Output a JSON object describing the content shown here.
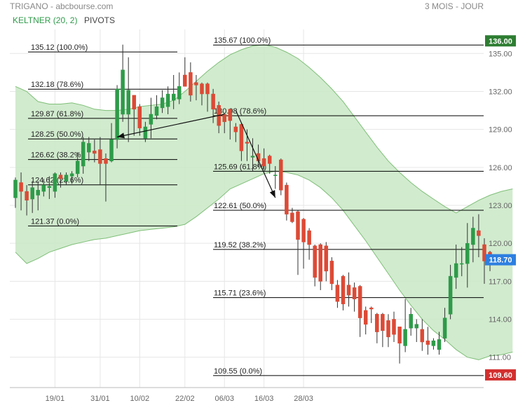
{
  "header": {
    "title": "TRIGANO - abcbourse.com",
    "period": "3 MOIS - JOUR",
    "indicator_keltner": "KELTNER (20, 2)",
    "indicator_pivots": "PIVOTS"
  },
  "colors": {
    "up": "#2e9b49",
    "down": "#dc4a36",
    "band_fill": "#c9e7c6",
    "band_line": "#7fbf78",
    "fib_line": "#000000",
    "grid": "#e6e6e6",
    "price_high_badge": "#2e7d32",
    "price_current_badge": "#2d7fe0",
    "price_low_badge": "#d32f2f",
    "keltner_label": "#2e9b49"
  },
  "chart_data": {
    "type": "candlestick",
    "y_axis": {
      "ylim": [
        108.6,
        136.9
      ],
      "ticks": [
        111,
        114,
        117,
        120,
        123,
        126,
        129,
        132,
        135
      ],
      "tick_labels": [
        "111.00",
        "114.00",
        "117.00",
        "120.00",
        "123.00",
        "126.00",
        "129.00",
        "132.00",
        "135.00"
      ]
    },
    "x_axis": {
      "labels": [
        {
          "idx": 7,
          "label": "19/01"
        },
        {
          "idx": 15,
          "label": "31/01"
        },
        {
          "idx": 22,
          "label": "10/02"
        },
        {
          "idx": 30,
          "label": "22/02"
        },
        {
          "idx": 37,
          "label": "06/03"
        },
        {
          "idx": 44,
          "label": "16/03"
        },
        {
          "idx": 51,
          "label": "28/03"
        }
      ]
    },
    "candles": [
      {
        "o": 123.6,
        "h": 125.2,
        "l": 122.8,
        "c": 125.0
      },
      {
        "o": 124.8,
        "h": 125.6,
        "l": 122.6,
        "c": 124.1
      },
      {
        "o": 124.1,
        "h": 124.6,
        "l": 122.2,
        "c": 123.4
      },
      {
        "o": 123.5,
        "h": 124.9,
        "l": 122.4,
        "c": 124.4
      },
      {
        "o": 123.8,
        "h": 124.9,
        "l": 122.6,
        "c": 124.2
      },
      {
        "o": 124.1,
        "h": 125.1,
        "l": 123.7,
        "c": 124.6
      },
      {
        "o": 124.4,
        "h": 125.3,
        "l": 123.5,
        "c": 124.5
      },
      {
        "o": 124.1,
        "h": 125.6,
        "l": 123.6,
        "c": 125.5
      },
      {
        "o": 125.4,
        "h": 125.6,
        "l": 124.4,
        "c": 125.1
      },
      {
        "o": 124.9,
        "h": 125.6,
        "l": 124.6,
        "c": 125.4
      },
      {
        "o": 125.3,
        "h": 125.7,
        "l": 124.7,
        "c": 125.5
      },
      {
        "o": 125.5,
        "h": 127.2,
        "l": 125.2,
        "c": 126.5
      },
      {
        "o": 126.1,
        "h": 128.4,
        "l": 125.5,
        "c": 128.0
      },
      {
        "o": 127.2,
        "h": 128.4,
        "l": 126.5,
        "c": 127.9
      },
      {
        "o": 127.3,
        "h": 128.2,
        "l": 126.4,
        "c": 127.1
      },
      {
        "o": 127.4,
        "h": 128.4,
        "l": 124.6,
        "c": 126.3
      },
      {
        "o": 126.7,
        "h": 127.1,
        "l": 123.3,
        "c": 126.3
      },
      {
        "o": 126.5,
        "h": 129.5,
        "l": 126.4,
        "c": 128.2
      },
      {
        "o": 128.2,
        "h": 132.5,
        "l": 127.5,
        "c": 132.2
      },
      {
        "o": 130.2,
        "h": 135.7,
        "l": 129.6,
        "c": 133.7
      },
      {
        "o": 130.2,
        "h": 134.7,
        "l": 128.0,
        "c": 132.1
      },
      {
        "o": 131.7,
        "h": 131.7,
        "l": 128.5,
        "c": 130.6
      },
      {
        "o": 130.8,
        "h": 131.0,
        "l": 128.5,
        "c": 129.1
      },
      {
        "o": 128.3,
        "h": 129.6,
        "l": 128.0,
        "c": 129.2
      },
      {
        "o": 129.4,
        "h": 131.5,
        "l": 128.3,
        "c": 130.2
      },
      {
        "o": 130.1,
        "h": 131.7,
        "l": 129.8,
        "c": 130.8
      },
      {
        "o": 130.7,
        "h": 132.1,
        "l": 130.3,
        "c": 131.5
      },
      {
        "o": 130.8,
        "h": 132.4,
        "l": 130.2,
        "c": 131.8
      },
      {
        "o": 131.3,
        "h": 133.3,
        "l": 130.6,
        "c": 131.8
      },
      {
        "o": 131.4,
        "h": 133.5,
        "l": 131.0,
        "c": 132.4
      },
      {
        "o": 133.3,
        "h": 134.7,
        "l": 132.6,
        "c": 132.4
      },
      {
        "o": 133.5,
        "h": 134.3,
        "l": 131.2,
        "c": 131.7
      },
      {
        "o": 132.7,
        "h": 133.3,
        "l": 131.3,
        "c": 132.5
      },
      {
        "o": 132.6,
        "h": 132.7,
        "l": 130.9,
        "c": 131.8
      },
      {
        "o": 132.6,
        "h": 132.7,
        "l": 130.4,
        "c": 131.8
      },
      {
        "o": 131.8,
        "h": 132.2,
        "l": 129.5,
        "c": 130.6
      },
      {
        "o": 130.9,
        "h": 131.2,
        "l": 128.7,
        "c": 129.3
      },
      {
        "o": 130.2,
        "h": 130.3,
        "l": 128.7,
        "c": 129.6
      },
      {
        "o": 130.6,
        "h": 130.6,
        "l": 128.2,
        "c": 129.7
      },
      {
        "o": 129.2,
        "h": 129.5,
        "l": 128.0,
        "c": 128.8
      },
      {
        "o": 129.4,
        "h": 129.5,
        "l": 126.5,
        "c": 127.3
      },
      {
        "o": 128.0,
        "h": 129.0,
        "l": 126.5,
        "c": 127.9
      },
      {
        "o": 126.8,
        "h": 128.3,
        "l": 125.7,
        "c": 126.9
      },
      {
        "o": 127.1,
        "h": 127.8,
        "l": 126.0,
        "c": 126.5
      },
      {
        "o": 126.7,
        "h": 127.5,
        "l": 125.8,
        "c": 126.1
      },
      {
        "o": 126.9,
        "h": 127.0,
        "l": 125.5,
        "c": 126.3
      },
      {
        "o": 125.4,
        "h": 126.1,
        "l": 124.3,
        "c": 125.4
      },
      {
        "o": 126.6,
        "h": 126.7,
        "l": 123.8,
        "c": 124.2
      },
      {
        "o": 124.6,
        "h": 124.8,
        "l": 121.8,
        "c": 122.3
      },
      {
        "o": 122.4,
        "h": 122.8,
        "l": 121.6,
        "c": 121.7
      },
      {
        "o": 122.5,
        "h": 122.6,
        "l": 117.5,
        "c": 120.3
      },
      {
        "o": 121.9,
        "h": 122.0,
        "l": 118.0,
        "c": 120.1
      },
      {
        "o": 121.0,
        "h": 121.2,
        "l": 118.7,
        "c": 119.9
      },
      {
        "o": 119.8,
        "h": 119.9,
        "l": 116.6,
        "c": 117.3
      },
      {
        "o": 119.9,
        "h": 120.0,
        "l": 116.3,
        "c": 117.0
      },
      {
        "o": 119.8,
        "h": 120.1,
        "l": 117.0,
        "c": 117.8
      },
      {
        "o": 118.6,
        "h": 118.9,
        "l": 116.3,
        "c": 116.8
      },
      {
        "o": 116.7,
        "h": 117.1,
        "l": 114.9,
        "c": 115.4
      },
      {
        "o": 117.4,
        "h": 117.5,
        "l": 114.7,
        "c": 115.2
      },
      {
        "o": 116.7,
        "h": 117.7,
        "l": 115.0,
        "c": 115.9
      },
      {
        "o": 116.5,
        "h": 116.9,
        "l": 114.6,
        "c": 115.6
      },
      {
        "o": 116.6,
        "h": 116.7,
        "l": 112.6,
        "c": 114.1
      },
      {
        "o": 114.7,
        "h": 115.0,
        "l": 112.8,
        "c": 113.6
      },
      {
        "o": 114.9,
        "h": 115.0,
        "l": 113.7,
        "c": 114.8
      },
      {
        "o": 114.4,
        "h": 114.5,
        "l": 112.1,
        "c": 113.0
      },
      {
        "o": 114.4,
        "h": 114.5,
        "l": 111.8,
        "c": 113.1
      },
      {
        "o": 113.9,
        "h": 114.4,
        "l": 111.8,
        "c": 112.6
      },
      {
        "o": 114.0,
        "h": 114.6,
        "l": 112.2,
        "c": 112.8
      },
      {
        "o": 113.4,
        "h": 113.4,
        "l": 110.5,
        "c": 112.1
      },
      {
        "o": 111.9,
        "h": 115.6,
        "l": 111.4,
        "c": 113.2
      },
      {
        "o": 113.3,
        "h": 114.9,
        "l": 112.7,
        "c": 114.4
      },
      {
        "o": 113.3,
        "h": 114.0,
        "l": 112.2,
        "c": 113.6
      },
      {
        "o": 113.2,
        "h": 114.0,
        "l": 111.5,
        "c": 112.2
      },
      {
        "o": 112.3,
        "h": 113.4,
        "l": 111.2,
        "c": 112.0
      },
      {
        "o": 111.9,
        "h": 112.5,
        "l": 111.6,
        "c": 112.3
      },
      {
        "o": 111.6,
        "h": 113.0,
        "l": 111.2,
        "c": 112.4
      },
      {
        "o": 112.5,
        "h": 114.9,
        "l": 112.2,
        "c": 114.1
      },
      {
        "o": 114.4,
        "h": 118.3,
        "l": 114.0,
        "c": 117.4
      },
      {
        "o": 117.3,
        "h": 119.9,
        "l": 116.4,
        "c": 118.4
      },
      {
        "o": 118.4,
        "h": 119.7,
        "l": 117.4,
        "c": 118.4
      },
      {
        "o": 118.4,
        "h": 121.6,
        "l": 116.5,
        "c": 120.0
      },
      {
        "o": 119.9,
        "h": 122.1,
        "l": 118.5,
        "c": 121.2
      },
      {
        "o": 121.0,
        "h": 122.3,
        "l": 118.9,
        "c": 120.6
      },
      {
        "o": 119.9,
        "h": 120.4,
        "l": 116.8,
        "c": 118.6
      },
      {
        "o": 119.3,
        "h": 119.4,
        "l": 117.8,
        "c": 118.7
      }
    ],
    "keltner_upper": [
      132.4,
      132.0,
      131.2,
      131.0,
      131.0,
      131.1,
      130.9,
      130.6,
      130.5,
      130.5,
      130.6,
      130.8,
      130.9,
      131.0,
      131.3,
      132.0,
      132.8,
      133.6,
      134.3,
      134.9,
      135.3,
      135.6,
      135.7,
      135.5,
      135.1,
      134.6,
      133.9,
      133.1,
      132.2,
      131.2,
      130.0,
      128.8,
      127.6,
      126.5,
      125.6,
      124.8,
      124.1,
      123.5,
      122.9,
      122.4,
      122.9,
      123.4,
      123.8,
      124.1,
      124.3
    ],
    "keltner_lower": [
      119.3,
      118.4,
      118.8,
      119.3,
      119.6,
      119.9,
      120.1,
      120.3,
      120.4,
      120.6,
      120.8,
      121.0,
      121.1,
      121.2,
      121.3,
      121.5,
      122.1,
      122.8,
      123.5,
      124.3,
      124.7,
      125.1,
      125.5,
      125.7,
      125.6,
      125.4,
      125.0,
      124.4,
      123.6,
      122.6,
      121.4,
      120.2,
      118.9,
      117.6,
      116.3,
      115.1,
      114.0,
      113.1,
      112.4,
      111.6,
      111.0,
      110.8,
      111.1,
      111.2,
      111.4
    ],
    "fib_left": [
      {
        "value": 135.12,
        "label": "135.12 (100.0%)"
      },
      {
        "value": 132.18,
        "label": "132.18 (78.6%)"
      },
      {
        "value": 129.87,
        "label": "129.87 (61.8%)"
      },
      {
        "value": 128.25,
        "label": "128.25 (50.0%)"
      },
      {
        "value": 126.62,
        "label": "126.62 (38.2%)"
      },
      {
        "value": 124.62,
        "label": "124.62 (23.6%)"
      },
      {
        "value": 121.37,
        "label": "121.37 (0.0%)"
      }
    ],
    "fib_right": [
      {
        "value": 135.67,
        "label": "135.67 (100.0%)"
      },
      {
        "value": 130.08,
        "label": "130.08 (78.6%)"
      },
      {
        "value": 125.69,
        "label": "125.69 (61.8%)"
      },
      {
        "value": 122.61,
        "label": "122.61 (50.0%)"
      },
      {
        "value": 119.52,
        "label": "119.52 (38.2%)"
      },
      {
        "value": 115.71,
        "label": "115.71 (23.6%)"
      },
      {
        "value": 109.55,
        "label": "109.55 (0.0%)"
      }
    ],
    "badges": [
      {
        "value": 136.0,
        "label": "136.00",
        "color": "#2e7d32"
      },
      {
        "value": 118.7,
        "label": "118.70",
        "color": "#2d7fe0"
      },
      {
        "value": 109.6,
        "label": "109.60",
        "color": "#d32f2f"
      }
    ],
    "arrows": [
      {
        "from_idx": 37,
        "from_value": 130.2,
        "to_idx": 18,
        "to_value": 128.4
      },
      {
        "from_idx": 39,
        "from_value": 130.5,
        "to_idx": 46,
        "to_value": 123.6
      }
    ]
  }
}
